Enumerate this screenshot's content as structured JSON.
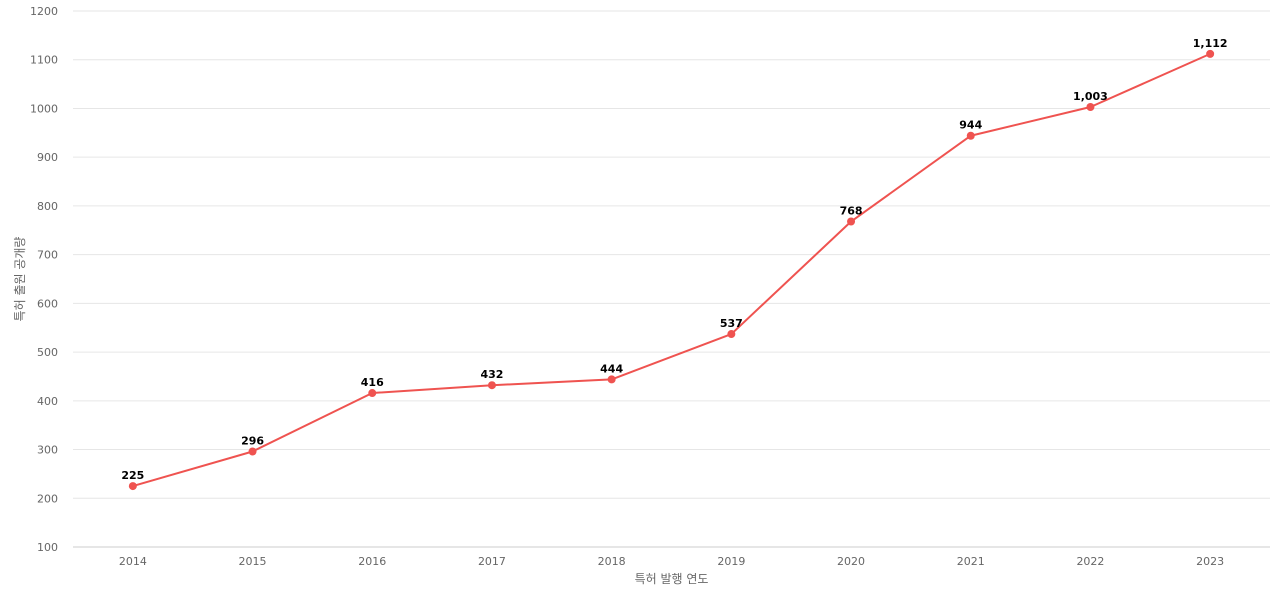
{
  "chart_data": {
    "type": "line",
    "title": "",
    "xlabel": "특허 발행 연도",
    "ylabel": "특허 출원 공개량",
    "categories": [
      "2014",
      "2015",
      "2016",
      "2017",
      "2018",
      "2019",
      "2020",
      "2021",
      "2022",
      "2023"
    ],
    "series": [
      {
        "values": [
          225,
          296,
          416,
          432,
          444,
          537,
          768,
          944,
          1003,
          1112
        ],
        "labels": [
          "225",
          "296",
          "416",
          "432",
          "444",
          "537",
          "768",
          "944",
          "1,003",
          "1,112"
        ],
        "color": "#ef5350"
      }
    ],
    "ylim": [
      100,
      1200
    ],
    "yticks": [
      "100",
      "200",
      "300",
      "400",
      "500",
      "600",
      "700",
      "800",
      "900",
      "1000",
      "1100",
      "1200"
    ],
    "grid": true,
    "legend": "none"
  }
}
